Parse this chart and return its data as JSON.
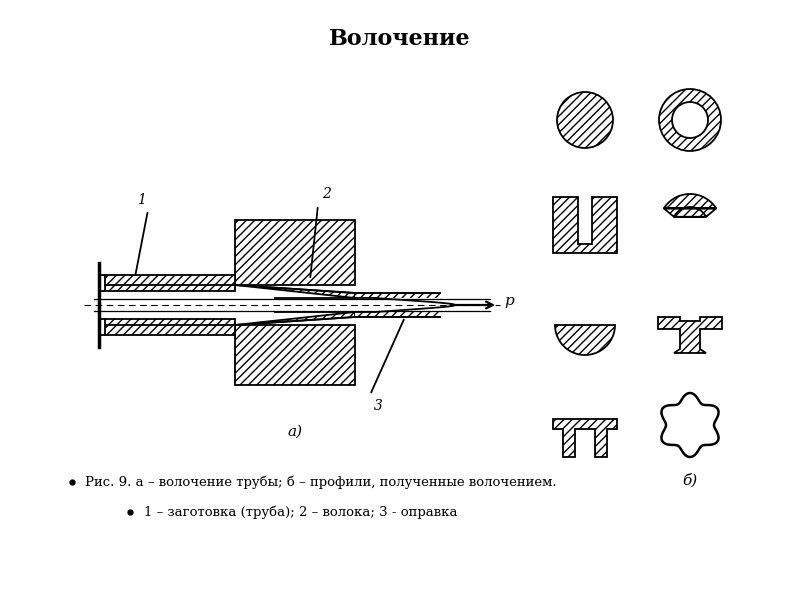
{
  "title": "Волочение",
  "title_fontsize": 16,
  "title_fontweight": "bold",
  "bg_color": "#ffffff",
  "line_color": "#000000",
  "hatch_pattern": "////",
  "label_a": "а)",
  "label_b": "б)",
  "caption_line1": "Рис. 9. а – волочение трубы; б – профили, полученные волочением.",
  "caption_line2": "1 – заготовка (труба); 2 – волока; 3 - оправка",
  "label1": "1",
  "label2": "2",
  "label3": "3",
  "label_p": "р"
}
